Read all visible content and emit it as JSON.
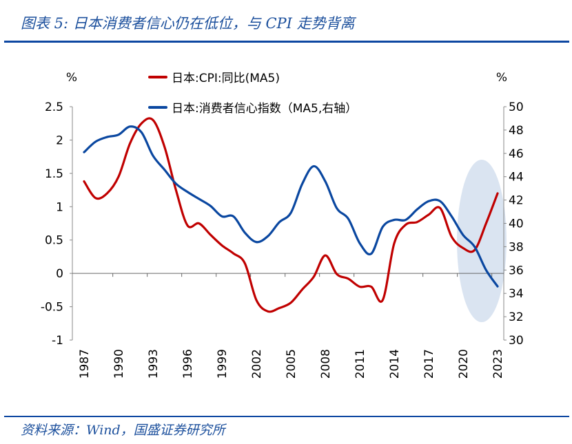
{
  "header": {
    "title": "图表 5:  日本消费者信心仍在低位，与 CPI 走势背离"
  },
  "footer": {
    "source": "资料来源：Wind，国盛证券研究所"
  },
  "colors": {
    "cpi": "#c00000",
    "confidence": "#0a47a0",
    "highlight": "#d6e1ef",
    "title": "#1b4f9c"
  },
  "chart_data": {
    "type": "line",
    "left_unit": "%",
    "right_unit": "%",
    "x": [
      1987,
      1988,
      1989,
      1990,
      1991,
      1992,
      1993,
      1994,
      1995,
      1996,
      1997,
      1998,
      1999,
      2000,
      2001,
      2002,
      2003,
      2004,
      2005,
      2006,
      2007,
      2008,
      2009,
      2010,
      2011,
      2012,
      2013,
      2014,
      2015,
      2016,
      2017,
      2018,
      2019,
      2020,
      2021,
      2022,
      2023
    ],
    "xticks": [
      "1987",
      "1990",
      "1993",
      "1996",
      "1999",
      "2002",
      "2005",
      "2008",
      "2011",
      "2014",
      "2017",
      "2020",
      "2023"
    ],
    "ylim_left": [
      -1,
      2.5
    ],
    "yticks_left": [
      "2.5",
      "2",
      "1.5",
      "1",
      "0.5",
      "0",
      "-0.5",
      "-1"
    ],
    "ylim_right": [
      30,
      50
    ],
    "yticks_right": [
      "50",
      "48",
      "46",
      "44",
      "42",
      "40",
      "38",
      "36",
      "34",
      "32",
      "30"
    ],
    "series": [
      {
        "name": "日本:CPI:同比(MA5)",
        "axis": "left",
        "values": [
          1.38,
          1.13,
          1.2,
          1.45,
          1.95,
          2.25,
          2.3,
          1.9,
          1.25,
          0.72,
          0.75,
          0.58,
          0.42,
          0.3,
          0.15,
          -0.4,
          -0.57,
          -0.52,
          -0.44,
          -0.24,
          -0.05,
          0.27,
          -0.01,
          -0.08,
          -0.2,
          -0.2,
          -0.4,
          0.45,
          0.73,
          0.77,
          0.88,
          0.98,
          0.55,
          0.38,
          0.35,
          0.75,
          1.2
        ]
      },
      {
        "name": "日本:消费者信心指数（MA5,右轴）",
        "axis": "right",
        "values": [
          46.1,
          47.0,
          47.4,
          47.6,
          48.3,
          47.8,
          45.8,
          44.6,
          43.4,
          42.7,
          42.1,
          41.5,
          40.6,
          40.6,
          39.2,
          38.4,
          38.9,
          40.1,
          40.9,
          43.4,
          44.9,
          43.6,
          41.3,
          40.4,
          38.3,
          37.4,
          39.7,
          40.3,
          40.3,
          41.2,
          41.9,
          41.9,
          40.6,
          39.0,
          38.0,
          36.0,
          34.6
        ]
      }
    ],
    "annotation": {
      "type": "ellipse-highlight",
      "x_range": [
        2020,
        2023
      ]
    },
    "legend_position": "top"
  }
}
